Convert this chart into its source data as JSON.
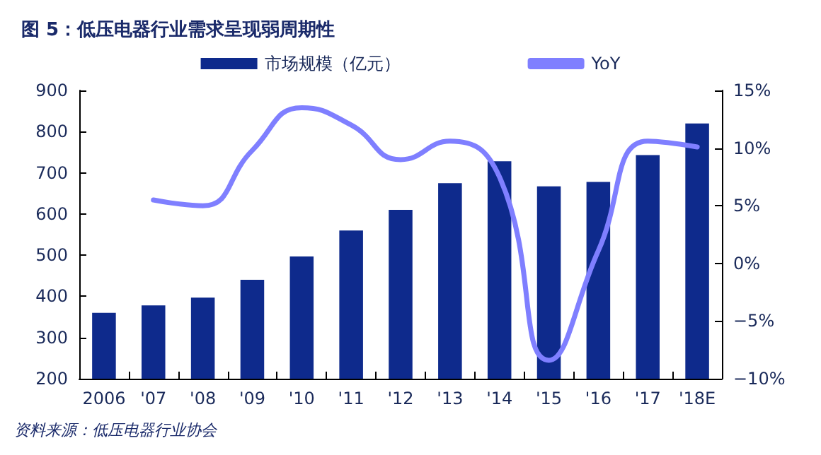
{
  "chart_data": {
    "type": "bar",
    "title": "图 5：低压电器行业需求呈现弱周期性",
    "categories": [
      "2006",
      "'07",
      "'08",
      "'09",
      "'10",
      "'11",
      "'12",
      "'13",
      "'14",
      "'15",
      "'16",
      "'17",
      "'18E"
    ],
    "series": [
      {
        "name": "市场规模（亿元）",
        "color": "#0e2a8c",
        "values": [
          360,
          378,
          397,
          440,
          497,
          560,
          610,
          675,
          728,
          667,
          678,
          743,
          820
        ]
      },
      {
        "name": "YoY",
        "type": "line",
        "axis": "y2",
        "color": "#7f7fff",
        "values": [
          null,
          5.5,
          5.0,
          9.8,
          13.5,
          12.0,
          9.0,
          10.6,
          7.5,
          -8.4,
          1.1,
          10.6,
          10.1
        ]
      }
    ],
    "ylim": [
      200,
      900
    ],
    "yticks": [
      200,
      300,
      400,
      500,
      600,
      700,
      800,
      900
    ],
    "y2lim": [
      -10,
      15
    ],
    "y2ticks": [
      {
        "value": -10,
        "label": "−10%"
      },
      {
        "value": -5,
        "label": "−5%"
      },
      {
        "value": 0,
        "label": "0%"
      },
      {
        "value": 5,
        "label": "5%"
      },
      {
        "value": 10,
        "label": "10%"
      },
      {
        "value": 15,
        "label": "15%"
      }
    ],
    "legend": "top",
    "grid": false,
    "marker": "none",
    "annotations": [
      "资料来源：低压电器行业协会"
    ]
  }
}
